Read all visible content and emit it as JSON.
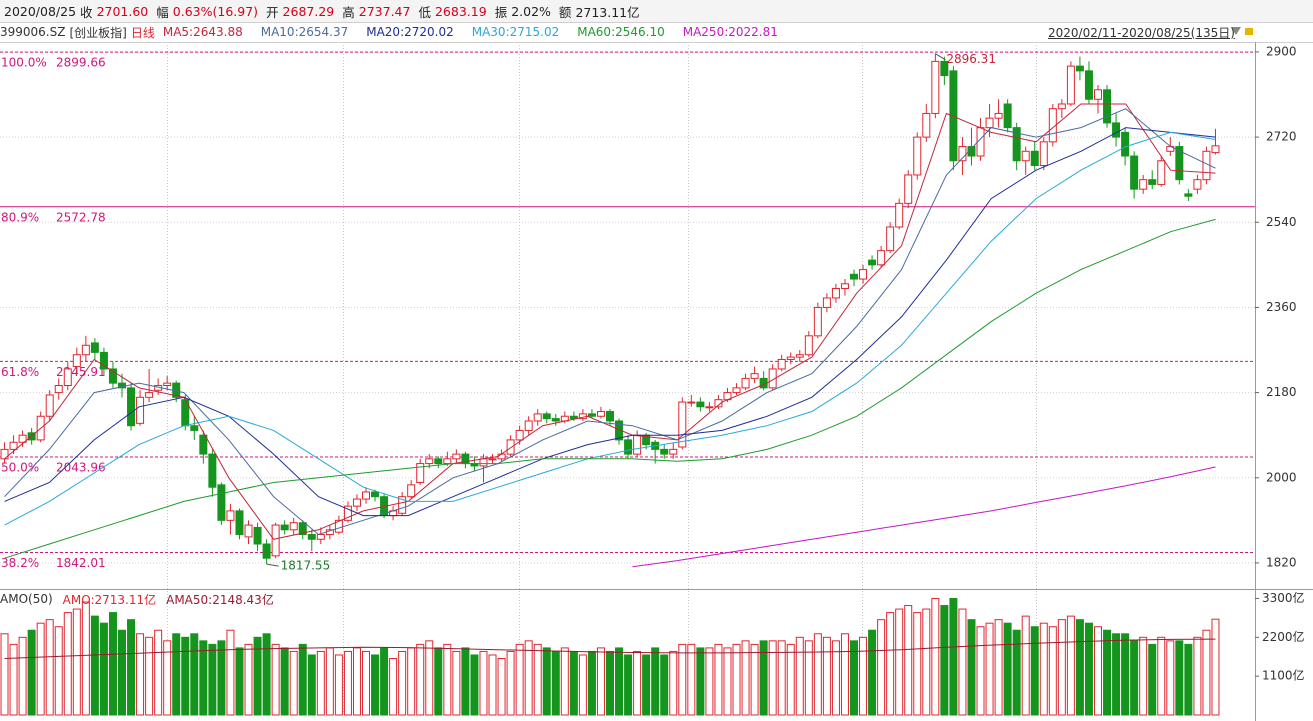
{
  "header": {
    "date": "2020/08/25",
    "items": [
      {
        "label": "收",
        "value": "2701.60",
        "color": "#d0021b"
      },
      {
        "label": "幅",
        "value": "0.63%(16.97)",
        "color": "#d0021b"
      },
      {
        "label": "开",
        "value": "2687.29",
        "color": "#d0021b"
      },
      {
        "label": "高",
        "value": "2737.47",
        "color": "#d0021b"
      },
      {
        "label": "低",
        "value": "2683.19",
        "color": "#d0021b"
      },
      {
        "label": "振",
        "value": "2.02%",
        "color": "#222222"
      },
      {
        "label": "额",
        "value": "2713.11亿",
        "color": "#222222"
      }
    ]
  },
  "chart_data": {
    "type": "candlestick",
    "symbol": "399006.SZ",
    "name": "[创业板指]",
    "period": "日线",
    "range_label": "2020/02/11-2020/08/25(135日)",
    "up_color": "#e0262f",
    "down_color": "#15951d",
    "ylim": [
      1767,
      2921
    ],
    "yticks": [
      1820,
      2000,
      2180,
      2360,
      2540,
      2720,
      2900
    ],
    "grid": true,
    "ohlc": [
      [
        2040,
        2075,
        2030,
        2060
      ],
      [
        2060,
        2090,
        2050,
        2075
      ],
      [
        2075,
        2100,
        2065,
        2090
      ],
      [
        2095,
        2105,
        2070,
        2080
      ],
      [
        2080,
        2140,
        2075,
        2130
      ],
      [
        2130,
        2185,
        2120,
        2175
      ],
      [
        2180,
        2210,
        2165,
        2195
      ],
      [
        2195,
        2245,
        2185,
        2230
      ],
      [
        2235,
        2275,
        2220,
        2260
      ],
      [
        2260,
        2300,
        2245,
        2280
      ],
      [
        2285,
        2295,
        2250,
        2265
      ],
      [
        2265,
        2275,
        2215,
        2230
      ],
      [
        2230,
        2245,
        2190,
        2200
      ],
      [
        2200,
        2220,
        2170,
        2190
      ],
      [
        2190,
        2200,
        2100,
        2110
      ],
      [
        2115,
        2185,
        2110,
        2170
      ],
      [
        2170,
        2230,
        2160,
        2180
      ],
      [
        2185,
        2210,
        2175,
        2195
      ],
      [
        2195,
        2215,
        2185,
        2200
      ],
      [
        2200,
        2205,
        2160,
        2170
      ],
      [
        2165,
        2175,
        2100,
        2110
      ],
      [
        2110,
        2130,
        2080,
        2100
      ],
      [
        2090,
        2100,
        2030,
        2050
      ],
      [
        2050,
        2060,
        1960,
        1980
      ],
      [
        1985,
        1990,
        1900,
        1910
      ],
      [
        1910,
        1945,
        1880,
        1930
      ],
      [
        1930,
        1935,
        1870,
        1880
      ],
      [
        1875,
        1910,
        1860,
        1900
      ],
      [
        1895,
        1905,
        1845,
        1860
      ],
      [
        1860,
        1870,
        1817.55,
        1830
      ],
      [
        1835,
        1905,
        1830,
        1900
      ],
      [
        1900,
        1910,
        1880,
        1890
      ],
      [
        1890,
        1915,
        1880,
        1905
      ],
      [
        1905,
        1910,
        1870,
        1880
      ],
      [
        1880,
        1890,
        1845,
        1870
      ],
      [
        1870,
        1895,
        1860,
        1880
      ],
      [
        1880,
        1900,
        1870,
        1890
      ],
      [
        1885,
        1920,
        1880,
        1910
      ],
      [
        1910,
        1950,
        1905,
        1940
      ],
      [
        1940,
        1965,
        1930,
        1955
      ],
      [
        1955,
        1980,
        1945,
        1970
      ],
      [
        1970,
        1975,
        1950,
        1960
      ],
      [
        1960,
        1965,
        1915,
        1920
      ],
      [
        1920,
        1940,
        1910,
        1930
      ],
      [
        1925,
        1970,
        1920,
        1960
      ],
      [
        1960,
        1995,
        1955,
        1985
      ],
      [
        1990,
        2040,
        1985,
        2030
      ],
      [
        2030,
        2050,
        2020,
        2040
      ],
      [
        2040,
        2045,
        2020,
        2030
      ],
      [
        2030,
        2055,
        2025,
        2040
      ],
      [
        2040,
        2060,
        2030,
        2050
      ],
      [
        2050,
        2055,
        2020,
        2030
      ],
      [
        2030,
        2045,
        2015,
        2025
      ],
      [
        2025,
        2050,
        1990,
        2040
      ],
      [
        2040,
        2050,
        2030,
        2040
      ],
      [
        2040,
        2060,
        2035,
        2050
      ],
      [
        2050,
        2090,
        2045,
        2080
      ],
      [
        2080,
        2110,
        2070,
        2100
      ],
      [
        2100,
        2130,
        2090,
        2120
      ],
      [
        2120,
        2145,
        2110,
        2135
      ],
      [
        2135,
        2140,
        2115,
        2125
      ],
      [
        2125,
        2135,
        2110,
        2120
      ],
      [
        2120,
        2140,
        2115,
        2130
      ],
      [
        2130,
        2140,
        2120,
        2125
      ],
      [
        2125,
        2145,
        2120,
        2135
      ],
      [
        2135,
        2145,
        2125,
        2130
      ],
      [
        2130,
        2150,
        2125,
        2140
      ],
      [
        2140,
        2145,
        2110,
        2120
      ],
      [
        2120,
        2125,
        2070,
        2080
      ],
      [
        2080,
        2090,
        2040,
        2050
      ],
      [
        2050,
        2100,
        2045,
        2090
      ],
      [
        2090,
        2095,
        2060,
        2070
      ],
      [
        2075,
        2080,
        2030,
        2060
      ],
      [
        2060,
        2070,
        2040,
        2050
      ],
      [
        2050,
        2075,
        2040,
        2060
      ],
      [
        2065,
        2170,
        2060,
        2160
      ],
      [
        2160,
        2175,
        2150,
        2160
      ],
      [
        2160,
        2170,
        2140,
        2150
      ],
      [
        2150,
        2160,
        2140,
        2150
      ],
      [
        2150,
        2175,
        2145,
        2165
      ],
      [
        2165,
        2190,
        2160,
        2180
      ],
      [
        2180,
        2200,
        2175,
        2190
      ],
      [
        2190,
        2220,
        2185,
        2210
      ],
      [
        2210,
        2235,
        2200,
        2220
      ],
      [
        2210,
        2225,
        2185,
        2190
      ],
      [
        2190,
        2240,
        2185,
        2230
      ],
      [
        2230,
        2260,
        2225,
        2250
      ],
      [
        2250,
        2265,
        2240,
        2255
      ],
      [
        2255,
        2270,
        2245,
        2260
      ],
      [
        2260,
        2310,
        2255,
        2300
      ],
      [
        2300,
        2370,
        2295,
        2360
      ],
      [
        2360,
        2390,
        2350,
        2380
      ],
      [
        2380,
        2410,
        2370,
        2400
      ],
      [
        2400,
        2420,
        2385,
        2410
      ],
      [
        2430,
        2440,
        2405,
        2420
      ],
      [
        2420,
        2450,
        2410,
        2440
      ],
      [
        2460,
        2470,
        2440,
        2450
      ],
      [
        2450,
        2490,
        2445,
        2480
      ],
      [
        2480,
        2540,
        2475,
        2530
      ],
      [
        2530,
        2590,
        2525,
        2580
      ],
      [
        2580,
        2650,
        2570,
        2640
      ],
      [
        2640,
        2730,
        2630,
        2720
      ],
      [
        2720,
        2790,
        2710,
        2770
      ],
      [
        2770,
        2896.31,
        2760,
        2880
      ],
      [
        2880,
        2890,
        2830,
        2850
      ],
      [
        2860,
        2870,
        2650,
        2670
      ],
      [
        2670,
        2720,
        2640,
        2700
      ],
      [
        2700,
        2740,
        2660,
        2680
      ],
      [
        2680,
        2760,
        2670,
        2740
      ],
      [
        2740,
        2790,
        2720,
        2760
      ],
      [
        2760,
        2800,
        2740,
        2770
      ],
      [
        2790,
        2800,
        2730,
        2740
      ],
      [
        2740,
        2750,
        2650,
        2670
      ],
      [
        2670,
        2700,
        2640,
        2690
      ],
      [
        2690,
        2710,
        2650,
        2660
      ],
      [
        2660,
        2720,
        2650,
        2710
      ],
      [
        2710,
        2790,
        2700,
        2780
      ],
      [
        2780,
        2800,
        2760,
        2790
      ],
      [
        2790,
        2880,
        2785,
        2870
      ],
      [
        2870,
        2890,
        2840,
        2860
      ],
      [
        2860,
        2880,
        2790,
        2800
      ],
      [
        2800,
        2830,
        2770,
        2820
      ],
      [
        2820,
        2830,
        2740,
        2750
      ],
      [
        2750,
        2770,
        2700,
        2720
      ],
      [
        2730,
        2740,
        2660,
        2680
      ],
      [
        2680,
        2690,
        2590,
        2610
      ],
      [
        2610,
        2640,
        2600,
        2630
      ],
      [
        2630,
        2650,
        2610,
        2620
      ],
      [
        2620,
        2680,
        2615,
        2670
      ],
      [
        2690,
        2720,
        2680,
        2700
      ],
      [
        2700,
        2710,
        2620,
        2630
      ],
      [
        2600,
        2610,
        2585,
        2595
      ],
      [
        2610,
        2640,
        2600,
        2630
      ],
      [
        2630,
        2700,
        2620,
        2690
      ],
      [
        2687.29,
        2737.47,
        2683.19,
        2701.6
      ]
    ],
    "series": [
      {
        "name": "MA5:2643.88",
        "color": "#c4253a",
        "values": [
          2040,
          2120,
          2250,
          2190,
          2170,
          2000,
          1870,
          1890,
          1930,
          1950,
          2030,
          2045,
          2110,
          2130,
          2090,
          2080,
          2160,
          2200,
          2255,
          2390,
          2490,
          2770,
          2730,
          2710,
          2790,
          2790,
          2650,
          2643.88
        ]
      },
      {
        "name": "MA10:2654.37",
        "color": "#4a6a9e",
        "values": [
          1960,
          2060,
          2180,
          2200,
          2180,
          2080,
          1960,
          1880,
          1910,
          1940,
          2000,
          2030,
          2080,
          2120,
          2110,
          2080,
          2120,
          2180,
          2220,
          2320,
          2440,
          2640,
          2740,
          2720,
          2740,
          2780,
          2700,
          2654.37
        ]
      },
      {
        "name": "MA20:2720.02",
        "color": "#1c2d99",
        "values": [
          1950,
          1990,
          2080,
          2150,
          2170,
          2130,
          2050,
          1960,
          1920,
          1920,
          1960,
          2000,
          2040,
          2070,
          2090,
          2090,
          2100,
          2130,
          2170,
          2250,
          2340,
          2460,
          2590,
          2650,
          2690,
          2740,
          2730,
          2720.02
        ]
      },
      {
        "name": "MA30:2715.02",
        "color": "#27a9d8",
        "values": [
          1900,
          1950,
          2010,
          2070,
          2110,
          2130,
          2100,
          2040,
          1980,
          1950,
          1950,
          1980,
          2010,
          2040,
          2060,
          2075,
          2090,
          2110,
          2140,
          2200,
          2280,
          2390,
          2500,
          2590,
          2650,
          2700,
          2730,
          2715.02
        ]
      },
      {
        "name": "MA60:2546.10",
        "color": "#1f9a2e",
        "values": [
          1830,
          1860,
          1890,
          1920,
          1950,
          1970,
          1990,
          2000,
          2010,
          2020,
          2030,
          2030,
          2040,
          2040,
          2040,
          2035,
          2040,
          2060,
          2090,
          2130,
          2190,
          2260,
          2330,
          2390,
          2440,
          2480,
          2520,
          2546.1
        ]
      },
      {
        "name": "MA250:2022.81",
        "color": "#c318c3",
        "values": [
          null,
          null,
          null,
          null,
          null,
          null,
          null,
          null,
          null,
          null,
          null,
          null,
          null,
          null,
          1812,
          1825,
          1840,
          1855,
          1870,
          1885,
          1900,
          1915,
          1930,
          1948,
          1965,
          1983,
          2002,
          2022.81
        ]
      }
    ],
    "fib_lines": [
      {
        "label": "100.0%",
        "value": 2899.66,
        "color": "#d0177f",
        "dashed": true
      },
      {
        "label": "80.9%",
        "value": 2572.78,
        "color": "#d0177f",
        "dashed": false
      },
      {
        "label": "61.8%",
        "value": 2245.91,
        "color": "#d0177f",
        "dashed": true
      },
      {
        "label": "50.0%",
        "value": 2043.96,
        "color": "#d0177f",
        "dashed": true
      },
      {
        "label": "38.2%",
        "value": 1842.01,
        "color": "#d0177f",
        "dashed": true
      }
    ],
    "volume": {
      "title": "AMO(50)",
      "label": "AMO:2713.11亿",
      "label_color": "#e0262f",
      "ylim": [
        0,
        3540
      ],
      "yticks": [
        {
          "value": 1100,
          "label": "1100亿"
        },
        {
          "value": 2200,
          "label": "2200亿"
        },
        {
          "value": 3300,
          "label": "3300亿"
        }
      ],
      "values": [
        2300,
        2000,
        2200,
        2400,
        2600,
        2700,
        2500,
        2900,
        3000,
        3200,
        2800,
        2600,
        2900,
        2400,
        2700,
        2300,
        2200,
        2400,
        2100,
        2300,
        2200,
        2300,
        2100,
        2000,
        2100,
        2400,
        1900,
        2000,
        2200,
        2300,
        2000,
        1900,
        1800,
        2000,
        1700,
        1800,
        1900,
        1700,
        1800,
        1900,
        1800,
        1700,
        1900,
        1600,
        1800,
        1900,
        2000,
        2100,
        1900,
        2000,
        1800,
        1900,
        1700,
        1800,
        1700,
        1600,
        1800,
        2000,
        2100,
        2000,
        1900,
        1800,
        1900,
        1800,
        1700,
        1800,
        1900,
        1800,
        1900,
        1700,
        1800,
        1700,
        1900,
        1700,
        1800,
        2000,
        2000,
        1900,
        1900,
        2000,
        1900,
        2000,
        2100,
        2000,
        2100,
        2100,
        2100,
        2000,
        2200,
        2100,
        2300,
        2200,
        2100,
        2300,
        2100,
        2200,
        2400,
        2700,
        2900,
        3000,
        3100,
        2900,
        3000,
        3300,
        3100,
        3300,
        3000,
        2700,
        2500,
        2600,
        2700,
        2600,
        2400,
        2800,
        2500,
        2600,
        2500,
        2700,
        2800,
        2700,
        2600,
        2500,
        2400,
        2300,
        2300,
        2100,
        2200,
        2000,
        2200,
        2100,
        2100,
        2000,
        2200,
        2400,
        2713.11
      ],
      "series": [
        {
          "name": "AMA50:2148.43亿",
          "color": "#9b1b30",
          "values": [
            1600,
            1650,
            1700,
            1750,
            1800,
            1850,
            1880,
            1900,
            1920,
            1910,
            1880,
            1850,
            1820,
            1790,
            1770,
            1760,
            1760,
            1770,
            1780,
            1800,
            1850,
            1920,
            1980,
            2030,
            2080,
            2120,
            2140,
            2148.43
          ]
        }
      ]
    }
  }
}
